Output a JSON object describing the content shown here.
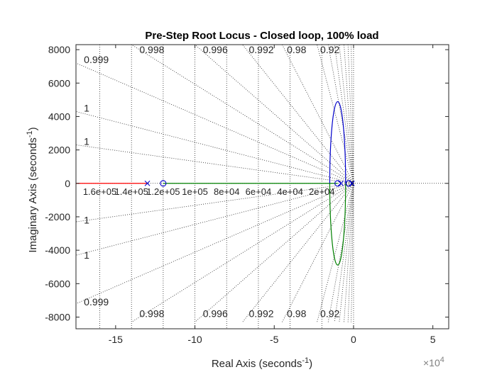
{
  "chart_data": {
    "type": "line",
    "title": "Pre-Step Root Locus - Closed loop, 100% load",
    "xlabel_main": "Real Axis (seconds",
    "xlabel_sup": "-1",
    "xlabel_end": ")",
    "ylabel_main": "Imaginary Axis (seconds",
    "ylabel_sup": "-1",
    "ylabel_end": ")",
    "x_multiplier_base": "×10",
    "x_multiplier_exp": "4",
    "xlim": [
      -17.5,
      6
    ],
    "ylim": [
      -8700,
      8300
    ],
    "xticks": [
      -15,
      -10,
      -5,
      0,
      5
    ],
    "xtick_labels": [
      "-15",
      "-10",
      "-5",
      "0",
      "5"
    ],
    "yticks": [
      -8000,
      -6000,
      -4000,
      -2000,
      0,
      2000,
      4000,
      6000,
      8000
    ],
    "ytick_labels": [
      "-8000",
      "-6000",
      "-4000",
      "-2000",
      "0",
      "2000",
      "4000",
      "6000",
      "8000"
    ],
    "grid": "sgrid (damping and natural frequency)",
    "damping_lines": [
      0.999,
      0.998,
      0.996,
      0.992,
      0.98,
      0.92,
      1,
      1
    ],
    "damping_labels_top": [
      {
        "text": "0.999",
        "x": -17.0,
        "y": 7200
      },
      {
        "text": "0.998",
        "x": -13.5,
        "y": 7800
      },
      {
        "text": "0.996",
        "x": -9.5,
        "y": 7800
      },
      {
        "text": "0.992",
        "x": -6.6,
        "y": 7800
      },
      {
        "text": "0.98",
        "x": -4.2,
        "y": 7800
      },
      {
        "text": "0.92",
        "x": -2.1,
        "y": 7800
      },
      {
        "text": "1",
        "x": -17.0,
        "y": 4300
      },
      {
        "text": "1",
        "x": -17.0,
        "y": 2300
      }
    ],
    "damping_labels_bottom": [
      {
        "text": "0.999",
        "x": -17.0,
        "y": -7300
      },
      {
        "text": "0.998",
        "x": -13.5,
        "y": -8000
      },
      {
        "text": "0.996",
        "x": -9.5,
        "y": -8000
      },
      {
        "text": "0.992",
        "x": -6.6,
        "y": -8000
      },
      {
        "text": "0.98",
        "x": -4.2,
        "y": -8000
      },
      {
        "text": "0.92",
        "x": -2.1,
        "y": -8000
      },
      {
        "text": "1",
        "x": -17.0,
        "y": -2400
      },
      {
        "text": "1",
        "x": -17.0,
        "y": -4500
      }
    ],
    "frequency_labels": [
      "1.6e+05",
      "1.4e+05",
      "1.2e+05",
      "1e+05",
      "8e+04",
      "6e+04",
      "4e+04",
      "2e+04"
    ],
    "frequency_values": [
      160000,
      140000,
      120000,
      100000,
      80000,
      60000,
      40000,
      20000
    ],
    "series": [
      {
        "color": "#ff0000",
        "points": [
          [
            -17.5,
            0
          ],
          [
            -13,
            0
          ]
        ]
      },
      {
        "color": "#008000",
        "points": [
          [
            -12.0,
            0
          ],
          [
            -1.0,
            0
          ]
        ]
      },
      {
        "color": "#0000cc",
        "type": "ellipse_upper",
        "center": [
          -1.0,
          0
        ],
        "rx": 0.5,
        "ry": 4900
      },
      {
        "color": "#008000",
        "type": "ellipse_lower",
        "center": [
          -1.0,
          0
        ],
        "rx": 0.5,
        "ry": 4900
      }
    ],
    "poles": [
      {
        "x": -13.0,
        "y": 0,
        "color": "#0000cc"
      },
      {
        "x": -0.8,
        "y": 0,
        "color": "#0000cc"
      },
      {
        "x": -0.1,
        "y": 0,
        "color": "#0000cc"
      }
    ],
    "zeros": [
      {
        "x": -12.0,
        "y": 0,
        "color": "#0000cc"
      },
      {
        "x": -1.0,
        "y": 0,
        "color": "#0000cc"
      },
      {
        "x": -0.3,
        "y": 0,
        "color": "#0000cc"
      }
    ],
    "colors": {
      "axis": "#262626",
      "grid": "#262626",
      "locus_blue": "#0000cc",
      "locus_green": "#008000",
      "locus_red": "#ff0000"
    }
  }
}
